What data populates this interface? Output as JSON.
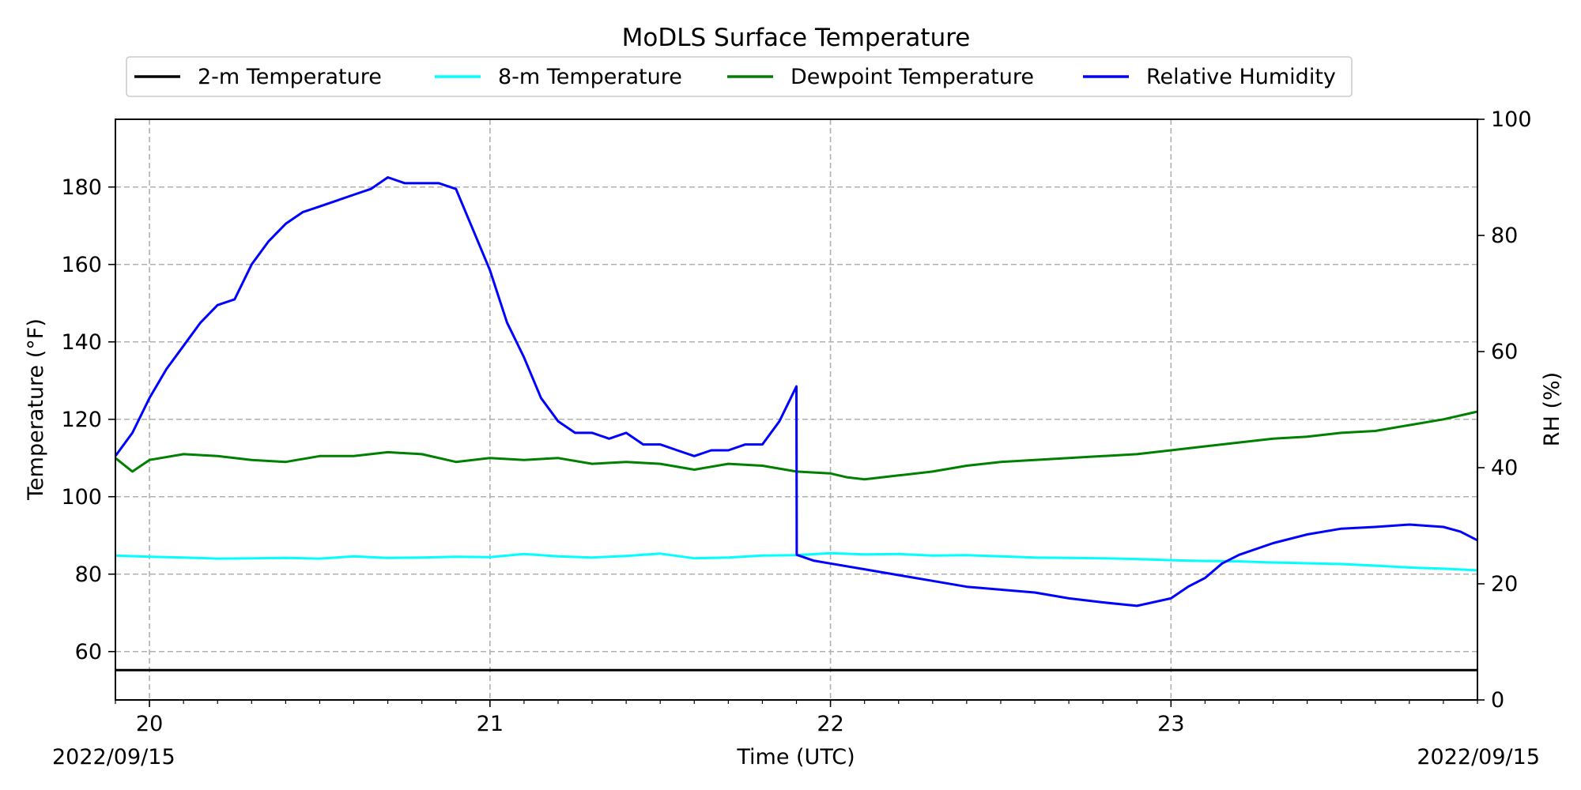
{
  "chart_data": {
    "type": "line",
    "title": "MoDLS Surface Temperature",
    "xlabel": "Time (UTC)",
    "ylabel": "Temperature (°F)",
    "ylabel_right": "RH (%)",
    "x_start_label": "2022/09/15",
    "x_end_label": "2022/09/15",
    "xlim": [
      19.9,
      23.9
    ],
    "ylim": [
      47.5,
      197.5
    ],
    "ylim_right": [
      0,
      100
    ],
    "x_ticks": [
      20,
      21,
      22,
      23
    ],
    "x_tick_labels": [
      "20",
      "21",
      "22",
      "23"
    ],
    "y_ticks": [
      60,
      80,
      100,
      120,
      140,
      160,
      180
    ],
    "y_tick_labels": [
      "60",
      "80",
      "100",
      "120",
      "140",
      "160",
      "180"
    ],
    "y_right_ticks": [
      0,
      20,
      40,
      60,
      80,
      100
    ],
    "y_right_tick_labels": [
      "0",
      "20",
      "40",
      "60",
      "80",
      "100"
    ],
    "grid": true,
    "legend_position": "top-center",
    "series": [
      {
        "name": "2-m Temperature",
        "axis": "left",
        "color": "#000000",
        "x": [
          19.9,
          23.9
        ],
        "y": [
          55.2,
          55.2
        ]
      },
      {
        "name": "8-m Temperature",
        "axis": "left",
        "color": "#00ffff",
        "x": [
          19.9,
          20.0,
          20.1,
          20.2,
          20.3,
          20.4,
          20.5,
          20.6,
          20.7,
          20.8,
          20.9,
          21.0,
          21.1,
          21.2,
          21.3,
          21.4,
          21.5,
          21.6,
          21.7,
          21.8,
          21.9,
          22.0,
          22.1,
          22.2,
          22.3,
          22.4,
          22.5,
          22.6,
          22.7,
          22.8,
          22.9,
          23.0,
          23.1,
          23.2,
          23.3,
          23.4,
          23.5,
          23.6,
          23.7,
          23.8,
          23.9
        ],
        "y": [
          84.8,
          84.5,
          84.3,
          84.0,
          84.1,
          84.2,
          84.0,
          84.6,
          84.2,
          84.3,
          84.5,
          84.4,
          85.2,
          84.6,
          84.3,
          84.7,
          85.3,
          84.1,
          84.3,
          84.8,
          84.9,
          85.4,
          85.1,
          85.2,
          84.8,
          84.9,
          84.6,
          84.3,
          84.2,
          84.1,
          83.9,
          83.6,
          83.4,
          83.3,
          83.0,
          82.8,
          82.6,
          82.2,
          81.7,
          81.4,
          81.0
        ]
      },
      {
        "name": "Dewpoint Temperature",
        "axis": "left",
        "color": "#008000",
        "x": [
          19.9,
          19.95,
          20.0,
          20.1,
          20.2,
          20.3,
          20.4,
          20.5,
          20.6,
          20.7,
          20.8,
          20.9,
          21.0,
          21.1,
          21.2,
          21.3,
          21.4,
          21.5,
          21.6,
          21.7,
          21.8,
          21.9,
          22.0,
          22.05,
          22.1,
          22.2,
          22.3,
          22.4,
          22.5,
          22.6,
          22.7,
          22.8,
          22.9,
          23.0,
          23.1,
          23.2,
          23.3,
          23.4,
          23.5,
          23.6,
          23.7,
          23.8,
          23.9
        ],
        "y": [
          110.0,
          106.5,
          109.5,
          111.0,
          110.5,
          109.5,
          109.0,
          110.5,
          110.5,
          111.5,
          111.0,
          109.0,
          110.0,
          109.5,
          110.0,
          108.5,
          109.0,
          108.5,
          107.0,
          108.5,
          108.0,
          106.5,
          106.0,
          105.0,
          104.5,
          105.5,
          106.5,
          108.0,
          109.0,
          109.5,
          110.0,
          110.5,
          111.0,
          112.0,
          113.0,
          114.0,
          115.0,
          115.5,
          116.5,
          117.0,
          118.5,
          120.0,
          122.0
        ]
      },
      {
        "name": "Relative Humidity",
        "axis": "right",
        "color": "#0000ff",
        "x": [
          19.9,
          19.95,
          20.0,
          20.05,
          20.1,
          20.15,
          20.2,
          20.25,
          20.3,
          20.35,
          20.4,
          20.45,
          20.5,
          20.55,
          20.6,
          20.65,
          20.7,
          20.75,
          20.8,
          20.85,
          20.9,
          20.95,
          21.0,
          21.05,
          21.1,
          21.15,
          21.2,
          21.25,
          21.3,
          21.35,
          21.4,
          21.45,
          21.5,
          21.55,
          21.6,
          21.65,
          21.7,
          21.75,
          21.8,
          21.85,
          21.9,
          21.901,
          21.95,
          22.0,
          22.1,
          22.2,
          22.3,
          22.4,
          22.5,
          22.6,
          22.7,
          22.8,
          22.9,
          23.0,
          23.05,
          23.1,
          23.15,
          23.2,
          23.3,
          23.4,
          23.5,
          23.6,
          23.7,
          23.8,
          23.85,
          23.9
        ],
        "y": [
          42,
          46,
          52,
          57,
          61,
          65,
          68,
          69,
          75,
          79,
          82,
          84,
          85,
          86,
          87,
          88,
          90,
          89,
          89,
          89,
          88,
          81,
          74,
          65,
          59,
          52,
          48,
          46,
          46,
          45,
          46,
          44,
          44,
          43,
          42,
          43,
          43,
          44,
          44,
          48,
          54,
          25,
          24,
          23.5,
          22.5,
          21.5,
          20.5,
          19.5,
          19.0,
          18.5,
          17.5,
          16.8,
          16.2,
          17.5,
          19.5,
          21.0,
          23.5,
          25.0,
          27.0,
          28.5,
          29.5,
          29.8,
          30.2,
          29.8,
          29.0,
          27.5
        ]
      }
    ]
  }
}
